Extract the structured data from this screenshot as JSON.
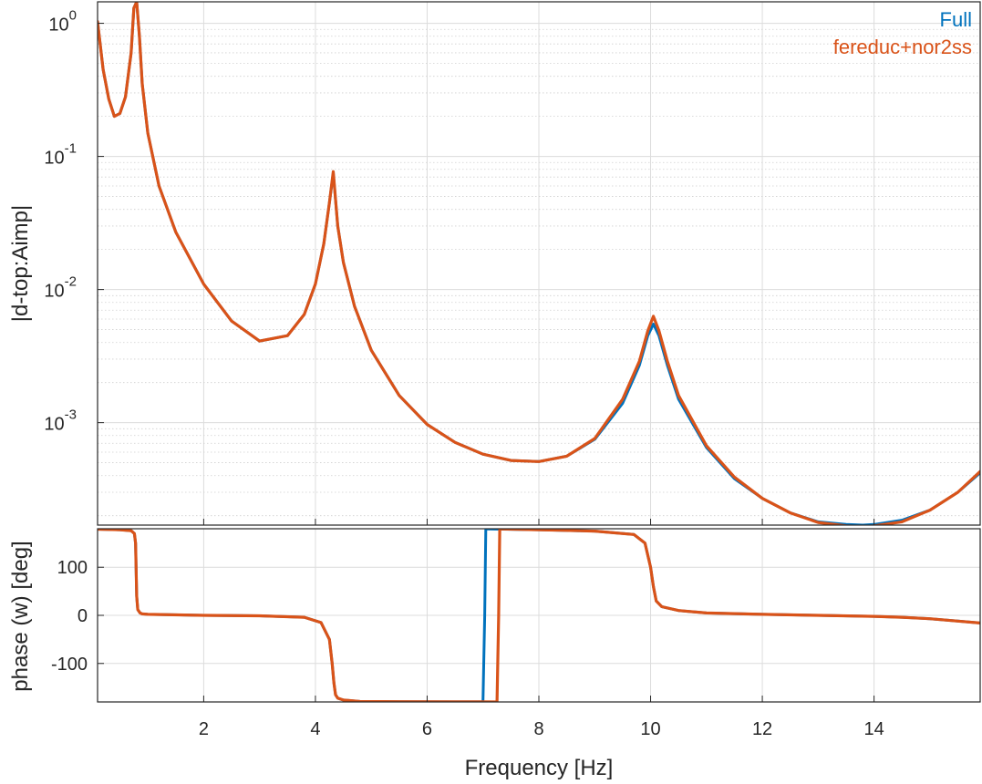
{
  "chart_data": {
    "type": "line",
    "xlabel": "Frequency [Hz]",
    "xlim": [
      0.1,
      15.9
    ],
    "xticks": [
      2,
      4,
      6,
      8,
      10,
      12,
      14
    ],
    "legend": {
      "placement": "top-right"
    },
    "colors": {
      "Full": "#0072BD",
      "fereduc+nor2ss": "#D95319"
    },
    "grid": {
      "major": true,
      "minor_y_top": true
    },
    "panels": [
      {
        "name": "magnitude",
        "ylabel": "|d-top:Aimp|",
        "yscale": "log",
        "ylim": [
          0.00017,
          1.45
        ],
        "yticks": [
          {
            "value": 1,
            "base": "10",
            "exp": "0"
          },
          {
            "value": 0.1,
            "base": "10",
            "exp": "-1"
          },
          {
            "value": 0.01,
            "base": "10",
            "exp": "-2"
          },
          {
            "value": 0.001,
            "base": "10",
            "exp": "-3"
          }
        ],
        "series": [
          {
            "name": "Full",
            "x": [
              0.1,
              0.2,
              0.3,
              0.4,
              0.5,
              0.6,
              0.7,
              0.75,
              0.8,
              0.85,
              0.9,
              1.0,
              1.2,
              1.5,
              2.0,
              2.5,
              3.0,
              3.5,
              3.8,
              4.0,
              4.15,
              4.25,
              4.32,
              4.4,
              4.5,
              4.7,
              5.0,
              5.5,
              6.0,
              6.5,
              7.0,
              7.5,
              8.0,
              8.5,
              9.0,
              9.5,
              9.8,
              9.95,
              10.05,
              10.15,
              10.3,
              10.5,
              11.0,
              11.5,
              12.0,
              12.5,
              13.0,
              13.5,
              13.8,
              14.0,
              14.5,
              15.0,
              15.5,
              15.9
            ],
            "y": [
              1.03,
              0.45,
              0.27,
              0.2,
              0.21,
              0.28,
              0.6,
              1.3,
              1.45,
              0.8,
              0.35,
              0.15,
              0.06,
              0.027,
              0.011,
              0.0058,
              0.0041,
              0.0045,
              0.0065,
              0.011,
              0.022,
              0.045,
              0.075,
              0.03,
              0.016,
              0.0075,
              0.0035,
              0.0016,
              0.00097,
              0.00071,
              0.00058,
              0.00052,
              0.00051,
              0.00056,
              0.00075,
              0.0014,
              0.0027,
              0.0045,
              0.0055,
              0.0045,
              0.0027,
              0.0015,
              0.00065,
              0.00038,
              0.00027,
              0.00021,
              0.00018,
              0.000172,
              0.00017,
              0.000172,
              0.000185,
              0.00022,
              0.0003,
              0.00042
            ]
          },
          {
            "name": "fereduc+nor2ss",
            "x": [
              0.1,
              0.2,
              0.3,
              0.4,
              0.5,
              0.6,
              0.7,
              0.75,
              0.8,
              0.85,
              0.9,
              1.0,
              1.2,
              1.5,
              2.0,
              2.5,
              3.0,
              3.5,
              3.8,
              4.0,
              4.15,
              4.25,
              4.32,
              4.4,
              4.5,
              4.7,
              5.0,
              5.5,
              6.0,
              6.5,
              7.0,
              7.5,
              8.0,
              8.5,
              9.0,
              9.5,
              9.8,
              9.95,
              10.05,
              10.15,
              10.3,
              10.5,
              11.0,
              11.5,
              12.0,
              12.5,
              13.0,
              13.5,
              13.8,
              14.0,
              14.5,
              15.0,
              15.5,
              15.9
            ],
            "y": [
              1.03,
              0.45,
              0.27,
              0.2,
              0.21,
              0.28,
              0.6,
              1.3,
              1.45,
              0.8,
              0.35,
              0.15,
              0.06,
              0.027,
              0.011,
              0.0058,
              0.0041,
              0.0045,
              0.0065,
              0.011,
              0.022,
              0.045,
              0.077,
              0.03,
              0.016,
              0.0075,
              0.0035,
              0.0016,
              0.00097,
              0.00071,
              0.00058,
              0.00052,
              0.00051,
              0.00056,
              0.00076,
              0.0015,
              0.0029,
              0.0049,
              0.0063,
              0.0049,
              0.0029,
              0.0016,
              0.00067,
              0.00039,
              0.00027,
              0.00021,
              0.000178,
              0.000168,
              0.000166,
              0.000168,
              0.00018,
              0.00022,
              0.0003,
              0.00043
            ]
          }
        ]
      },
      {
        "name": "phase",
        "ylabel": "phase (w) [deg]",
        "yscale": "linear",
        "ylim": [
          -180,
          180
        ],
        "yticks": [
          100,
          0,
          -100
        ],
        "series": [
          {
            "name": "Full",
            "x": [
              0.1,
              0.5,
              0.7,
              0.76,
              0.78,
              0.8,
              0.82,
              0.86,
              0.9,
              1.0,
              2.0,
              3.0,
              3.8,
              4.1,
              4.25,
              4.3,
              4.33,
              4.36,
              4.4,
              4.5,
              4.8,
              5.5,
              6.5,
              7.0,
              7.03,
              7.05,
              7.1,
              8.0,
              9.0,
              9.7,
              9.9,
              10.0,
              10.05,
              10.1,
              10.2,
              10.5,
              11.0,
              12.0,
              13.0,
              14.0,
              14.5,
              15.0,
              15.5,
              15.9
            ],
            "y": [
              179,
              178,
              176,
              170,
              150,
              40,
              12,
              5,
              3,
              2,
              0,
              -1,
              -4,
              -15,
              -50,
              -100,
              -140,
              -165,
              -172,
              -176,
              -179,
              -179.5,
              -179.8,
              -179.9,
              0,
              180,
              179.5,
              178,
              175,
              168,
              150,
              100,
              60,
              30,
              18,
              10,
              5,
              2,
              0,
              -2,
              -4,
              -7,
              -12,
              -16
            ]
          },
          {
            "name": "fereduc+nor2ss",
            "x": [
              0.1,
              0.5,
              0.7,
              0.76,
              0.78,
              0.8,
              0.82,
              0.86,
              0.9,
              1.0,
              2.0,
              3.0,
              3.8,
              4.1,
              4.25,
              4.3,
              4.33,
              4.36,
              4.4,
              4.5,
              4.8,
              5.5,
              6.5,
              7.0,
              7.25,
              7.28,
              7.3,
              7.35,
              8.0,
              9.0,
              9.7,
              9.9,
              10.0,
              10.05,
              10.1,
              10.2,
              10.5,
              11.0,
              12.0,
              13.0,
              14.0,
              14.5,
              15.0,
              15.5,
              15.9
            ],
            "y": [
              179,
              178,
              176,
              170,
              150,
              40,
              12,
              5,
              3,
              2,
              0,
              -1,
              -4,
              -15,
              -50,
              -100,
              -140,
              -165,
              -172,
              -176,
              -179,
              -179.5,
              -179.8,
              -179.9,
              -180,
              0,
              180,
              179.5,
              178,
              175,
              168,
              150,
              100,
              60,
              30,
              18,
              10,
              5,
              2,
              0,
              -2,
              -4,
              -7,
              -12,
              -16
            ]
          }
        ]
      }
    ]
  }
}
